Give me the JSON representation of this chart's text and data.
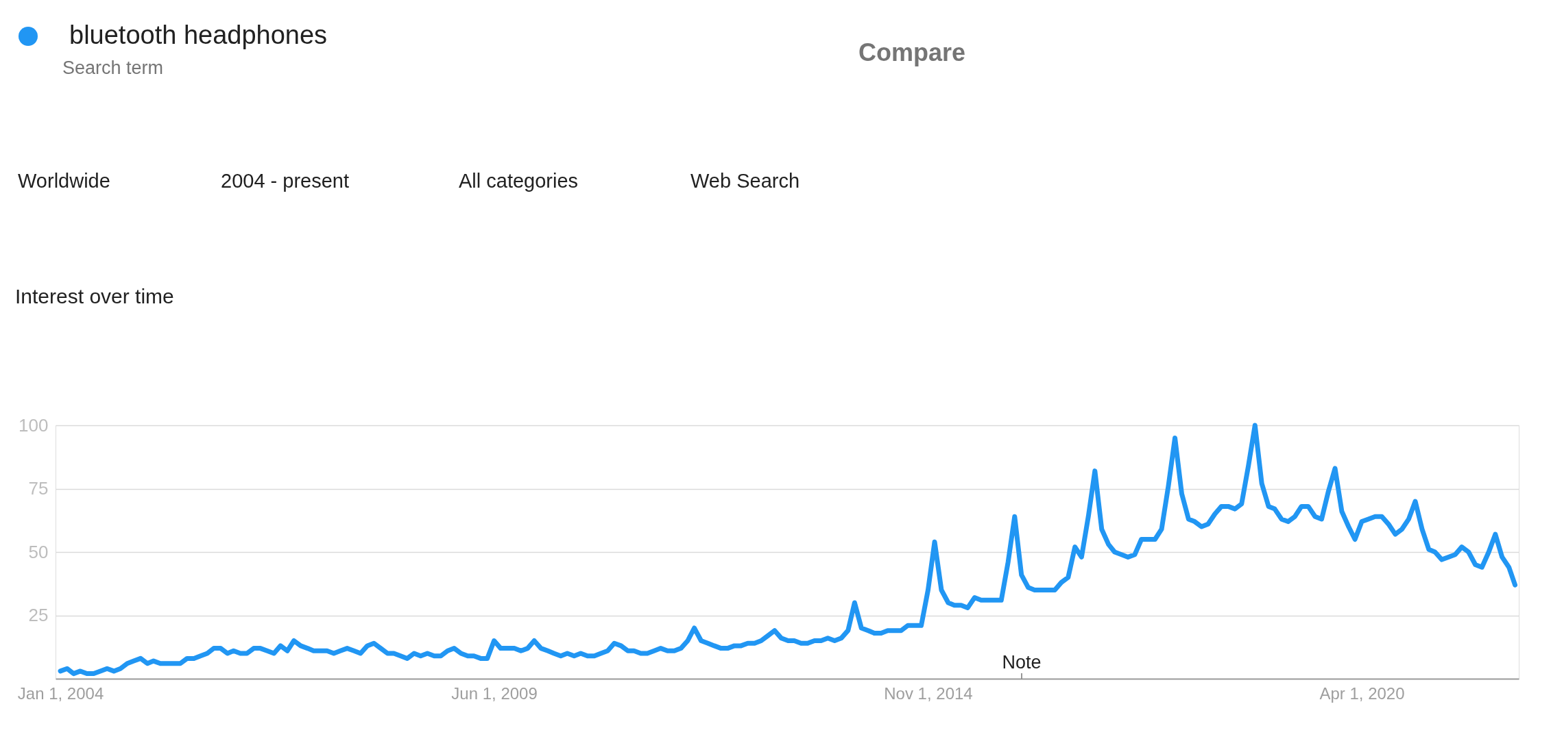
{
  "chart_data": {
    "type": "line",
    "title": "Interest over time",
    "x": [
      "2004-01",
      "2004-02",
      "2004-03",
      "2004-04",
      "2004-05",
      "2004-06",
      "2004-07",
      "2004-08",
      "2004-09",
      "2004-10",
      "2004-11",
      "2004-12",
      "2005-01",
      "2005-02",
      "2005-03",
      "2005-04",
      "2005-05",
      "2005-06",
      "2005-07",
      "2005-08",
      "2005-09",
      "2005-10",
      "2005-11",
      "2005-12",
      "2006-01",
      "2006-02",
      "2006-03",
      "2006-04",
      "2006-05",
      "2006-06",
      "2006-07",
      "2006-08",
      "2006-09",
      "2006-10",
      "2006-11",
      "2006-12",
      "2007-01",
      "2007-02",
      "2007-03",
      "2007-04",
      "2007-05",
      "2007-06",
      "2007-07",
      "2007-08",
      "2007-09",
      "2007-10",
      "2007-11",
      "2007-12",
      "2008-01",
      "2008-02",
      "2008-03",
      "2008-04",
      "2008-05",
      "2008-06",
      "2008-07",
      "2008-08",
      "2008-09",
      "2008-10",
      "2008-11",
      "2008-12",
      "2009-01",
      "2009-02",
      "2009-03",
      "2009-04",
      "2009-05",
      "2009-06",
      "2009-07",
      "2009-08",
      "2009-09",
      "2009-10",
      "2009-11",
      "2009-12",
      "2010-01",
      "2010-02",
      "2010-03",
      "2010-04",
      "2010-05",
      "2010-06",
      "2010-07",
      "2010-08",
      "2010-09",
      "2010-10",
      "2010-11",
      "2010-12",
      "2011-01",
      "2011-02",
      "2011-03",
      "2011-04",
      "2011-05",
      "2011-06",
      "2011-07",
      "2011-08",
      "2011-09",
      "2011-10",
      "2011-11",
      "2011-12",
      "2012-01",
      "2012-02",
      "2012-03",
      "2012-04",
      "2012-05",
      "2012-06",
      "2012-07",
      "2012-08",
      "2012-09",
      "2012-10",
      "2012-11",
      "2012-12",
      "2013-01",
      "2013-02",
      "2013-03",
      "2013-04",
      "2013-05",
      "2013-06",
      "2013-07",
      "2013-08",
      "2013-09",
      "2013-10",
      "2013-11",
      "2013-12",
      "2014-01",
      "2014-02",
      "2014-03",
      "2014-04",
      "2014-05",
      "2014-06",
      "2014-07",
      "2014-08",
      "2014-09",
      "2014-10",
      "2014-11",
      "2014-12",
      "2015-01",
      "2015-02",
      "2015-03",
      "2015-04",
      "2015-05",
      "2015-06",
      "2015-07",
      "2015-08",
      "2015-09",
      "2015-10",
      "2015-11",
      "2015-12",
      "2016-01",
      "2016-02",
      "2016-03",
      "2016-04",
      "2016-05",
      "2016-06",
      "2016-07",
      "2016-08",
      "2016-09",
      "2016-10",
      "2016-11",
      "2016-12",
      "2017-01",
      "2017-02",
      "2017-03",
      "2017-04",
      "2017-05",
      "2017-06",
      "2017-07",
      "2017-08",
      "2017-09",
      "2017-10",
      "2017-11",
      "2017-12",
      "2018-01",
      "2018-02",
      "2018-03",
      "2018-04",
      "2018-05",
      "2018-06",
      "2018-07",
      "2018-08",
      "2018-09",
      "2018-10",
      "2018-11",
      "2018-12",
      "2019-01",
      "2019-02",
      "2019-03",
      "2019-04",
      "2019-05",
      "2019-06",
      "2019-07",
      "2019-08",
      "2019-09",
      "2019-10",
      "2019-11",
      "2019-12",
      "2020-01",
      "2020-02",
      "2020-03",
      "2020-04",
      "2020-05",
      "2020-06",
      "2020-07",
      "2020-08",
      "2020-09",
      "2020-10",
      "2020-11",
      "2020-12",
      "2021-01",
      "2021-02",
      "2021-03",
      "2021-04",
      "2021-05",
      "2021-06",
      "2021-07",
      "2021-08",
      "2021-09",
      "2021-10",
      "2021-11",
      "2021-12",
      "2022-01",
      "2022-02",
      "2022-03"
    ],
    "series": [
      {
        "name": "bluetooth headphones",
        "color": "#2196f3",
        "values": [
          3,
          4,
          2,
          3,
          2,
          2,
          3,
          4,
          3,
          4,
          6,
          7,
          8,
          6,
          7,
          6,
          6,
          6,
          6,
          8,
          8,
          9,
          10,
          12,
          12,
          10,
          11,
          10,
          10,
          12,
          12,
          11,
          10,
          13,
          11,
          15,
          13,
          12,
          11,
          11,
          11,
          10,
          11,
          12,
          11,
          10,
          13,
          14,
          12,
          10,
          10,
          9,
          8,
          10,
          9,
          10,
          9,
          9,
          11,
          12,
          10,
          9,
          9,
          8,
          8,
          15,
          12,
          12,
          12,
          11,
          12,
          15,
          12,
          11,
          10,
          9,
          10,
          9,
          10,
          9,
          9,
          10,
          11,
          14,
          13,
          11,
          11,
          10,
          10,
          11,
          12,
          11,
          11,
          12,
          15,
          20,
          15,
          14,
          13,
          12,
          12,
          13,
          13,
          14,
          14,
          15,
          17,
          19,
          16,
          15,
          15,
          14,
          14,
          15,
          15,
          16,
          15,
          16,
          19,
          30,
          20,
          19,
          18,
          18,
          19,
          19,
          19,
          21,
          21,
          21,
          35,
          54,
          35,
          30,
          29,
          29,
          28,
          32,
          31,
          31,
          31,
          31,
          46,
          64,
          41,
          36,
          35,
          35,
          35,
          35,
          38,
          40,
          52,
          48,
          64,
          82,
          59,
          53,
          50,
          49,
          48,
          49,
          55,
          55,
          55,
          59,
          76,
          95,
          73,
          63,
          62,
          60,
          61,
          65,
          68,
          68,
          67,
          69,
          84,
          100,
          77,
          68,
          67,
          63,
          62,
          64,
          68,
          68,
          64,
          63,
          74,
          83,
          66,
          60,
          55,
          62,
          63,
          64,
          64,
          61,
          57,
          59,
          63,
          70,
          59,
          51,
          50,
          47,
          48,
          49,
          52,
          50,
          45,
          44,
          50,
          57,
          48,
          44,
          37
        ]
      }
    ],
    "xlim": [
      "2003-12-10",
      "2022-03-18"
    ],
    "xticks": [
      {
        "value": "2004-01",
        "label": "Jan 1, 2004"
      },
      {
        "value": "2009-06",
        "label": "Jun 1, 2009"
      },
      {
        "value": "2014-11",
        "label": "Nov 1, 2014"
      },
      {
        "value": "2020-04",
        "label": "Apr 1, 2020"
      }
    ],
    "ylim": [
      0,
      100
    ],
    "yticks": [
      25,
      50,
      75,
      100
    ],
    "grid": "y",
    "legend": "top left",
    "annotations": [
      "Search term",
      "Compare",
      "Worldwide",
      "2004 - present",
      "All categories",
      "Web Search",
      "Note"
    ]
  }
}
